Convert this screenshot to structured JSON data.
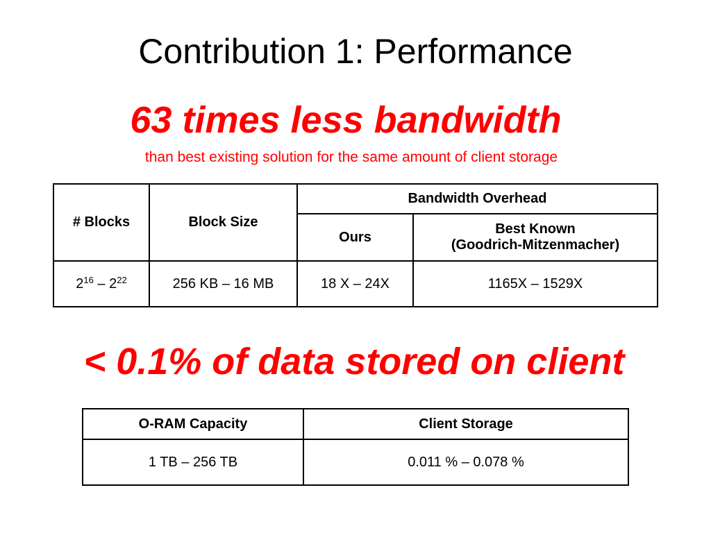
{
  "slide": {
    "title": "Contribution 1: Performance",
    "headline1": "63 times less bandwidth",
    "subline1": "than best existing solution for the same amount of client storage",
    "headline2": "< 0.1% of data stored on client"
  },
  "table1": {
    "headers": {
      "blocks": "# Blocks",
      "block_size": "Block Size",
      "bandwidth_overhead": "Bandwidth Overhead",
      "ours": "Ours",
      "best_known": "Best Known",
      "best_known_sub": "(Goodrich-Mitzenmacher)"
    },
    "row": {
      "blocks_base1": "2",
      "blocks_exp1": "16",
      "blocks_dash": " – ",
      "blocks_base2": "2",
      "blocks_exp2": "22",
      "block_size": "256 KB – 16 MB",
      "ours": "18 X – 24X",
      "best_known": "1165X – 1529X"
    }
  },
  "table2": {
    "headers": {
      "capacity": "O-RAM Capacity",
      "client_storage": "Client Storage"
    },
    "row": {
      "capacity": "1 TB – 256 TB",
      "client_storage": "0.011 % – 0.078 %"
    }
  }
}
